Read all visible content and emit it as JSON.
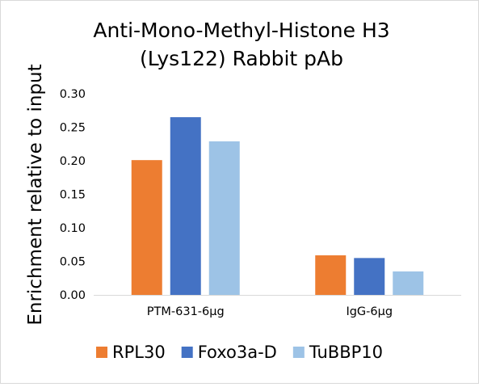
{
  "chart_data": {
    "type": "bar",
    "title": "Anti-Mono-Methyl-Histone H3 (Lys122) Rabbit pAb",
    "title_lines": [
      "Anti-Mono-Methyl-Histone H3",
      "(Lys122) Rabbit pAb"
    ],
    "xlabel": "",
    "ylabel": "Enrichment relative to input",
    "categories": [
      "PTM-631-6μg",
      "IgG-6μg"
    ],
    "series": [
      {
        "name": "RPL30",
        "values": [
          0.201,
          0.059
        ],
        "color": "#ED7D31"
      },
      {
        "name": "Foxo3a-D",
        "values": [
          0.265,
          0.055
        ],
        "color": "#4472C4"
      },
      {
        "name": "TuBBP10",
        "values": [
          0.229,
          0.035
        ],
        "color": "#9DC3E6"
      }
    ],
    "ylim": [
      0,
      0.3
    ],
    "yticks": [
      "0.00",
      "0.05",
      "0.10",
      "0.15",
      "0.20",
      "0.25",
      "0.30"
    ],
    "grid": false,
    "legend_position": "bottom"
  }
}
